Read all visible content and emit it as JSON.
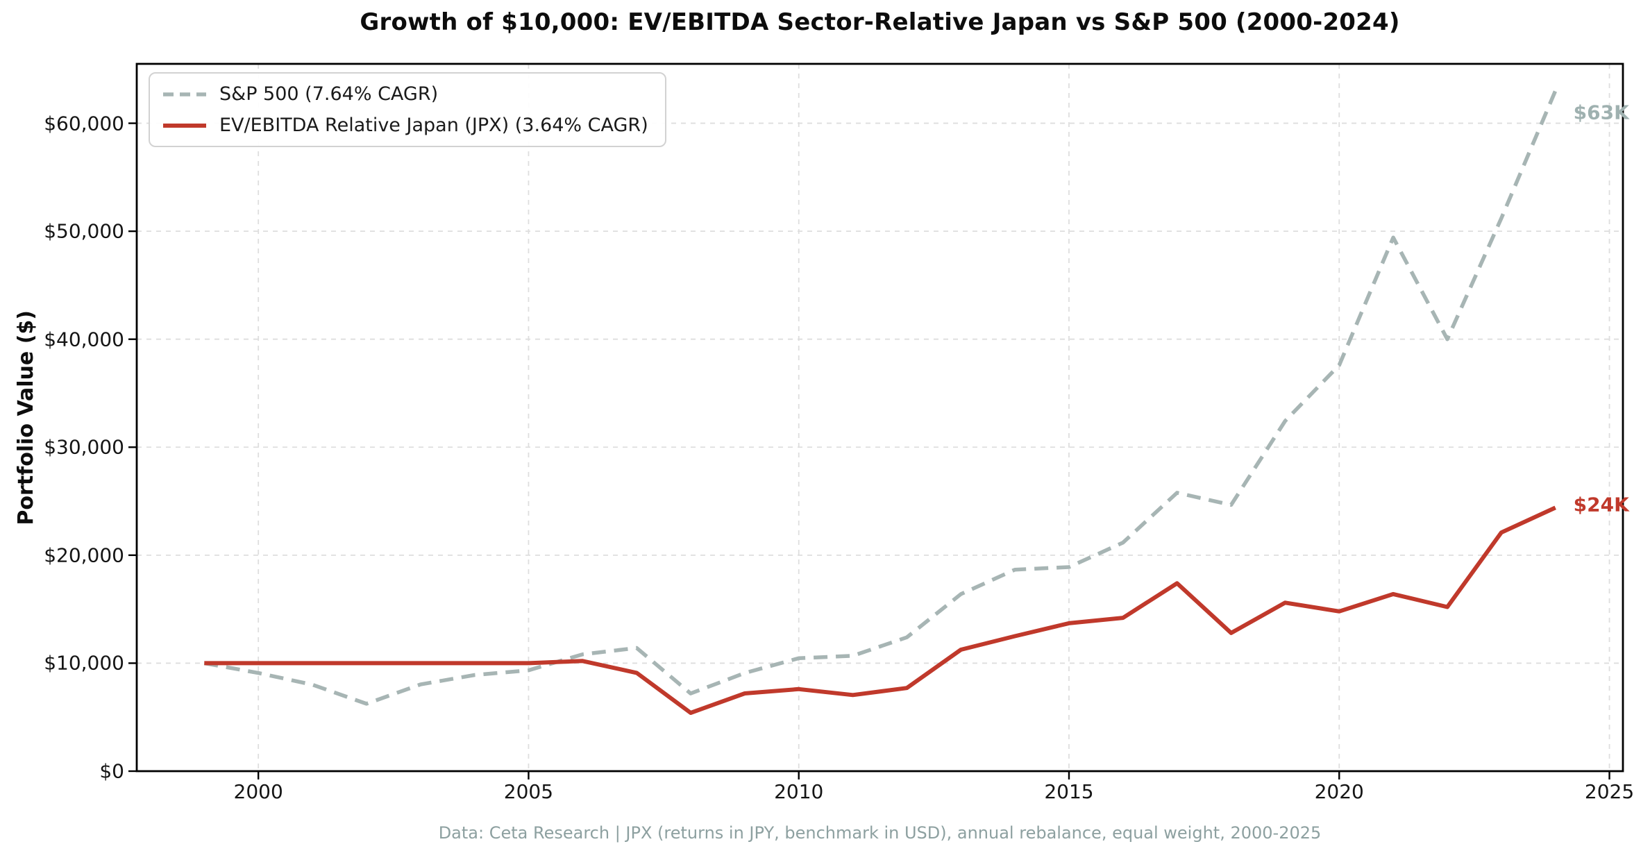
{
  "title": "Growth of $10,000: EV/EBITDA Sector-Relative Japan vs S&P 500 (2000-2024)",
  "y_axis_label": "Portfolio Value ($)",
  "caption": "Data: Ceta Research | JPX (returns in JPY, benchmark in USD), annual rebalance, equal weight, 2000-2025",
  "colors": {
    "sp500": "#a7b5b4",
    "japan": "#c0392b",
    "grid": "#dedede",
    "spine": "#000000",
    "end_sp500": "#9fb1b0",
    "end_japan": "#c0392b",
    "caption": "#8da0a0"
  },
  "chart_data": {
    "type": "line",
    "title": "Growth of $10,000: EV/EBITDA Sector-Relative Japan vs S&P 500 (2000-2024)",
    "xlabel": "",
    "ylabel": "Portfolio Value ($)",
    "x": [
      1999,
      2000,
      2001,
      2002,
      2003,
      2004,
      2005,
      2006,
      2007,
      2008,
      2009,
      2010,
      2011,
      2012,
      2013,
      2014,
      2015,
      2016,
      2017,
      2018,
      2019,
      2020,
      2021,
      2022,
      2023,
      2024
    ],
    "series": [
      {
        "key": "sp500",
        "name": "S&P 500 (7.64% CAGR)",
        "style": "dashed",
        "color_key": "sp500",
        "values": [
          10000,
          9090,
          8010,
          6240,
          8030,
          8900,
          9340,
          10820,
          11410,
          7190,
          9090,
          10460,
          10680,
          12390,
          16400,
          18660,
          18900,
          21170,
          25780,
          24660,
          32430,
          37600,
          49420,
          40000,
          51200,
          63000
        ]
      },
      {
        "key": "japan",
        "name": "EV/EBITDA Relative Japan (JPX) (3.64% CAGR)",
        "style": "solid",
        "color_key": "japan",
        "values": [
          10000,
          10000,
          10000,
          10000,
          10000,
          10000,
          10000,
          10200,
          9100,
          5400,
          7200,
          7600,
          7050,
          7700,
          11250,
          12500,
          13700,
          14200,
          17400,
          12800,
          15600,
          14800,
          16400,
          15200,
          22100,
          24400
        ]
      }
    ],
    "x_ticks": [
      2000,
      2005,
      2010,
      2015,
      2020,
      2025
    ],
    "x_tick_labels": [
      "2000",
      "2005",
      "2010",
      "2015",
      "2020",
      "2025"
    ],
    "y_ticks": [
      0,
      10000,
      20000,
      30000,
      40000,
      50000,
      60000
    ],
    "y_tick_labels": [
      "$0",
      "$10,000",
      "$20,000",
      "$30,000",
      "$40,000",
      "$50,000",
      "$60,000"
    ],
    "xlim": [
      1997.75,
      2025.25
    ],
    "ylim": [
      0,
      65500
    ],
    "grid": true,
    "legend_position": "upper left",
    "end_labels": [
      {
        "text": "$63K",
        "series_key": "sp500",
        "at_value": 61000,
        "color_key": "end_sp500"
      },
      {
        "text": "$24K",
        "series_key": "japan",
        "at_value": 24700,
        "color_key": "end_japan"
      }
    ]
  }
}
